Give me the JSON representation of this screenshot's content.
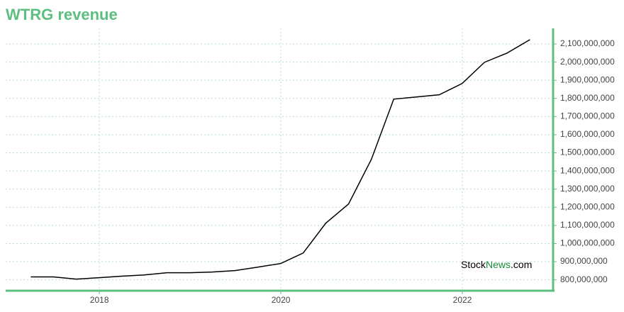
{
  "chart_data": {
    "type": "line",
    "title": "WTRG revenue",
    "x": [
      "2017-03-31",
      "2017-06-30",
      "2017-09-30",
      "2017-12-31",
      "2018-03-31",
      "2018-06-30",
      "2018-09-30",
      "2018-12-31",
      "2019-03-31",
      "2019-06-30",
      "2019-09-30",
      "2019-12-31",
      "2020-03-31",
      "2020-06-30",
      "2020-09-30",
      "2020-12-31",
      "2021-03-31",
      "2021-06-30",
      "2021-09-30",
      "2021-12-31",
      "2022-03-31",
      "2022-06-30",
      "2022-09-30"
    ],
    "series": [
      {
        "name": "WTRG revenue",
        "color": "#000000",
        "values": [
          816000000,
          816000000,
          804000000,
          812000000,
          820000000,
          827000000,
          839000000,
          839000000,
          843000000,
          851000000,
          870000000,
          890000000,
          948000000,
          1112000000,
          1218000000,
          1464000000,
          1796000000,
          1808000000,
          1820000000,
          1882000000,
          1999000000,
          2050000000,
          2124000000
        ]
      }
    ],
    "xlim": [
      "2016-12-20",
      "2023-01-01"
    ],
    "xticks": [
      {
        "value": "2018-01-01",
        "label": "2018"
      },
      {
        "value": "2020-01-01",
        "label": "2020"
      },
      {
        "value": "2022-01-01",
        "label": "2022"
      }
    ],
    "ylim": [
      740000000,
      2186000000
    ],
    "yticks": [
      {
        "value": 800000000,
        "label": "800,000,000"
      },
      {
        "value": 900000000,
        "label": "900,000,000"
      },
      {
        "value": 1000000000,
        "label": "1,000,000,000"
      },
      {
        "value": 1100000000,
        "label": "1,100,000,000"
      },
      {
        "value": 1200000000,
        "label": "1,200,000,000"
      },
      {
        "value": 1300000000,
        "label": "1,300,000,000"
      },
      {
        "value": 1400000000,
        "label": "1,400,000,000"
      },
      {
        "value": 1500000000,
        "label": "1,500,000,000"
      },
      {
        "value": 1600000000,
        "label": "1,600,000,000"
      },
      {
        "value": 1700000000,
        "label": "1,700,000,000"
      },
      {
        "value": 1800000000,
        "label": "1,800,000,000"
      },
      {
        "value": 1900000000,
        "label": "1,900,000,000"
      },
      {
        "value": 2000000000,
        "label": "2,000,000,000"
      },
      {
        "value": 2100000000,
        "label": "2,100,000,000"
      }
    ],
    "grid": true,
    "axis_color": "#5cbf7f",
    "watermark": [
      "Stock",
      "News",
      ".com"
    ]
  }
}
